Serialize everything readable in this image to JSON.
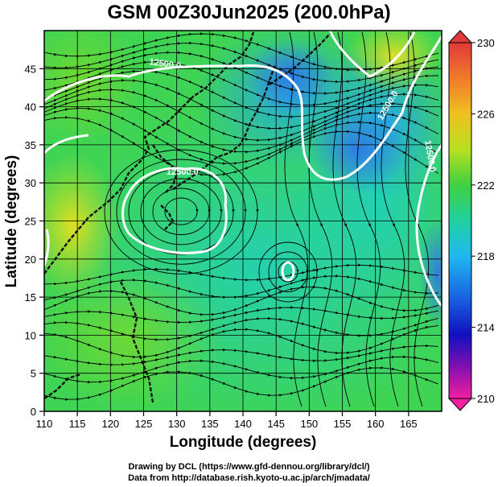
{
  "title": "GSM 00Z30Jun2025 (200.0hPa)",
  "footer": {
    "line1": "Drawing by DCL (https://www.gfd-dennou.org/library/dcl/)",
    "line2": "Data from http://database.rish.kyoto-u.ac.jp/arch/jmadata/"
  },
  "map": {
    "x_label": "Longitude (degrees)",
    "y_label": "Latitude  (degrees)",
    "lon_range": [
      110,
      170
    ],
    "lat_range": [
      0,
      50
    ],
    "x_ticks": [
      "110",
      "115",
      "120",
      "125",
      "130",
      "135",
      "140",
      "145",
      "150",
      "155",
      "160",
      "165"
    ],
    "y_ticks": [
      "0",
      "5",
      "10",
      "15",
      "20",
      "25",
      "30",
      "35",
      "40",
      "45"
    ],
    "contour_labels": [
      "12500.0",
      "12500.0",
      "12500.0",
      "12500.0"
    ]
  },
  "colorbar": {
    "labels": [
      "230",
      "226",
      "222",
      "218",
      "214",
      "210"
    ],
    "colors": [
      "#e0364a",
      "#f07a2a",
      "#e8d81a",
      "#98dd20",
      "#2ed04a",
      "#20d4a0",
      "#1ec8e8",
      "#1f6fe0",
      "#1010c0",
      "#7a10b0",
      "#e020a0"
    ]
  }
}
